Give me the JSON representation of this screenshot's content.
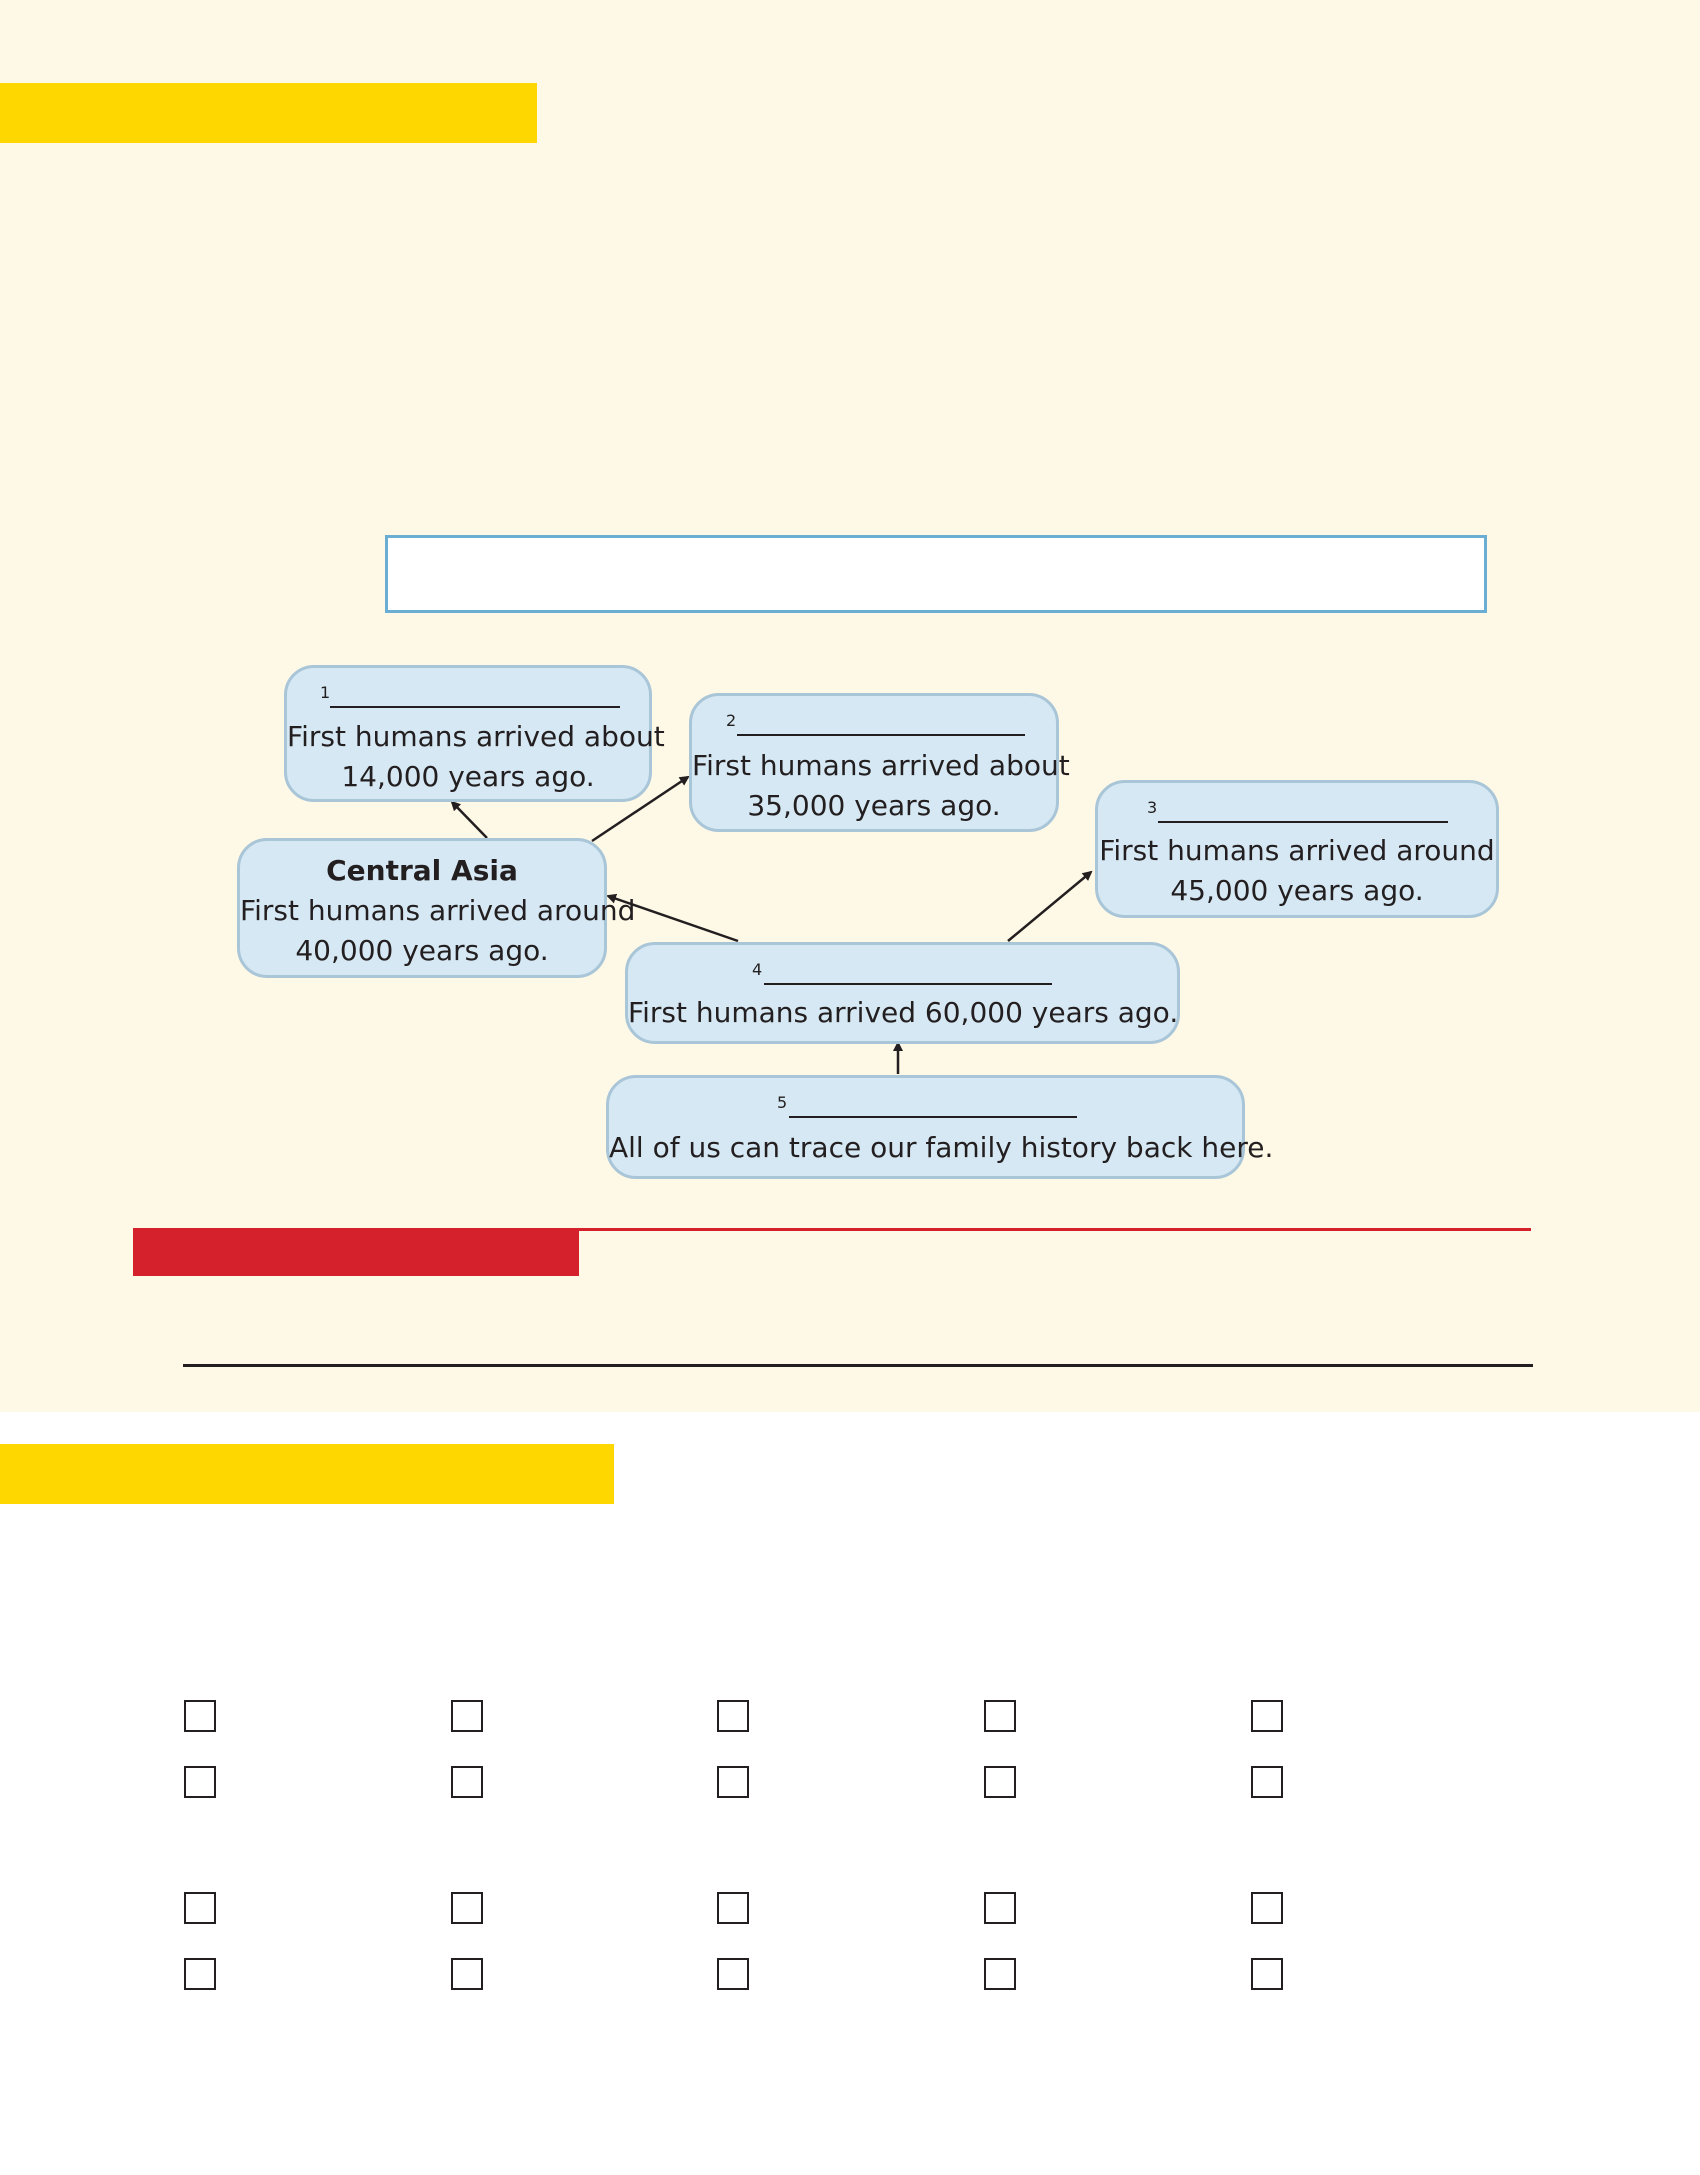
{
  "colors": {
    "page_background": "#fef8e6",
    "yellow_band": "#ffd700",
    "red_band": "#d4212c",
    "card_fill": "#d6e8f3",
    "card_border": "#a9c5d8",
    "answer_box_border": "#6aaed3"
  },
  "diagram": {
    "cards": [
      {
        "id": "card-1",
        "number": "1",
        "lines": [
          "First humans arrived about",
          "14,000 years ago."
        ]
      },
      {
        "id": "card-2",
        "number": "2",
        "lines": [
          "First humans arrived about",
          "35,000 years ago."
        ]
      },
      {
        "id": "card-3",
        "number": "3",
        "lines": [
          "First humans arrived around",
          "45,000 years ago."
        ]
      },
      {
        "id": "card-central-asia",
        "title": "Central Asia",
        "lines": [
          "First humans arrived around",
          "40,000 years ago."
        ]
      },
      {
        "id": "card-4",
        "number": "4",
        "lines": [
          "First humans arrived 60,000 years ago."
        ]
      },
      {
        "id": "card-5",
        "number": "5",
        "lines": [
          "All of us can trace our family history back here."
        ]
      }
    ]
  },
  "checkbox_grid": {
    "groups": 2,
    "rows_per_group": 2,
    "columns": 5
  }
}
